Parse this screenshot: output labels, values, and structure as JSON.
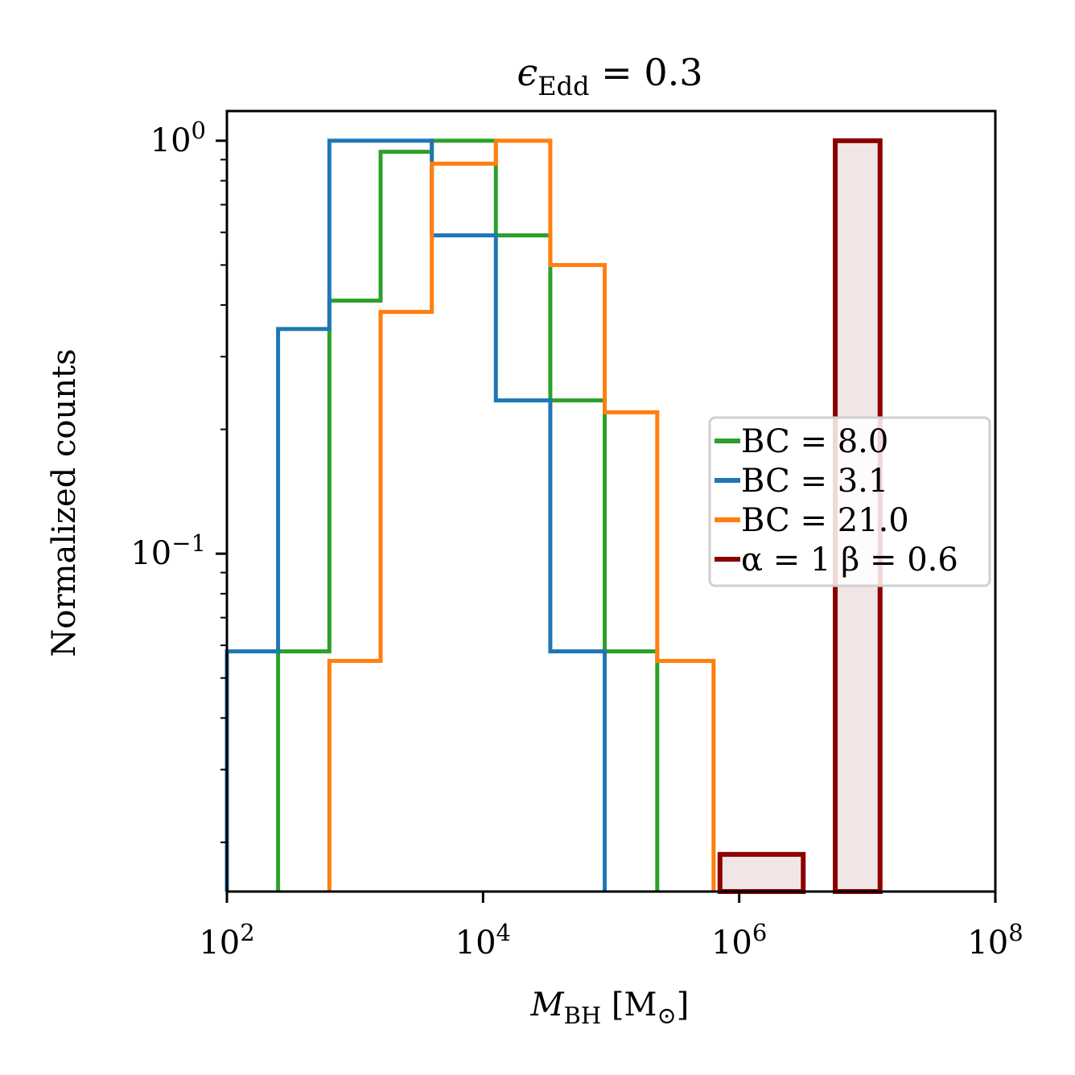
{
  "chart_data": {
    "type": "histogram",
    "title": "ϵEdd = 0.3",
    "xlabel": "MBH [M⊙]",
    "ylabel": "Normalized counts",
    "xscale": "log",
    "yscale": "log",
    "xlim": [
      100,
      100000000
    ],
    "ylim": [
      0.0152,
      1.18
    ],
    "x_ticks": [
      {
        "base": "10",
        "exp": "2",
        "value": 100
      },
      {
        "base": "10",
        "exp": "4",
        "value": 10000
      },
      {
        "base": "10",
        "exp": "6",
        "value": 1000000
      },
      {
        "base": "10",
        "exp": "8",
        "value": 100000000
      }
    ],
    "y_ticks": [
      {
        "base": "10",
        "exp": "0",
        "value": 1
      },
      {
        "base": "10",
        "exp": "−1",
        "value": 0.1
      }
    ],
    "legend": {
      "location": "center-right"
    },
    "series": [
      {
        "name": "BC = 8.0",
        "color": "#2ca02c",
        "filled": false,
        "bin_edges": [
          251,
          631,
          1585,
          3981,
          12589,
          33497,
          89125,
          229087
        ],
        "values": [
          0.058,
          0.41,
          0.94,
          1.0,
          0.59,
          0.235,
          0.058
        ]
      },
      {
        "name": "BC = 3.1",
        "color": "#1f77b4",
        "filled": false,
        "bin_edges": [
          100,
          251,
          631,
          3981,
          12589,
          33497,
          89125
        ],
        "values": [
          0.058,
          0.35,
          1.0,
          0.59,
          0.235,
          0.058
        ]
      },
      {
        "name": "BC = 21.0",
        "color": "#ff7f0e",
        "filled": false,
        "bin_edges": [
          631,
          1585,
          3981,
          12589,
          33497,
          89125,
          229087,
          630957
        ],
        "values": [
          0.055,
          0.385,
          0.88,
          1.0,
          0.5,
          0.22,
          0.055
        ]
      },
      {
        "name": "α = 1 β = 0.6",
        "color": "#8b0000",
        "fill": "#f2e5e5",
        "filled": true,
        "bin_edges": [
          707946,
          3162278,
          5623413,
          12589254
        ],
        "values": [
          0.0187,
          0,
          1.0
        ]
      }
    ]
  }
}
